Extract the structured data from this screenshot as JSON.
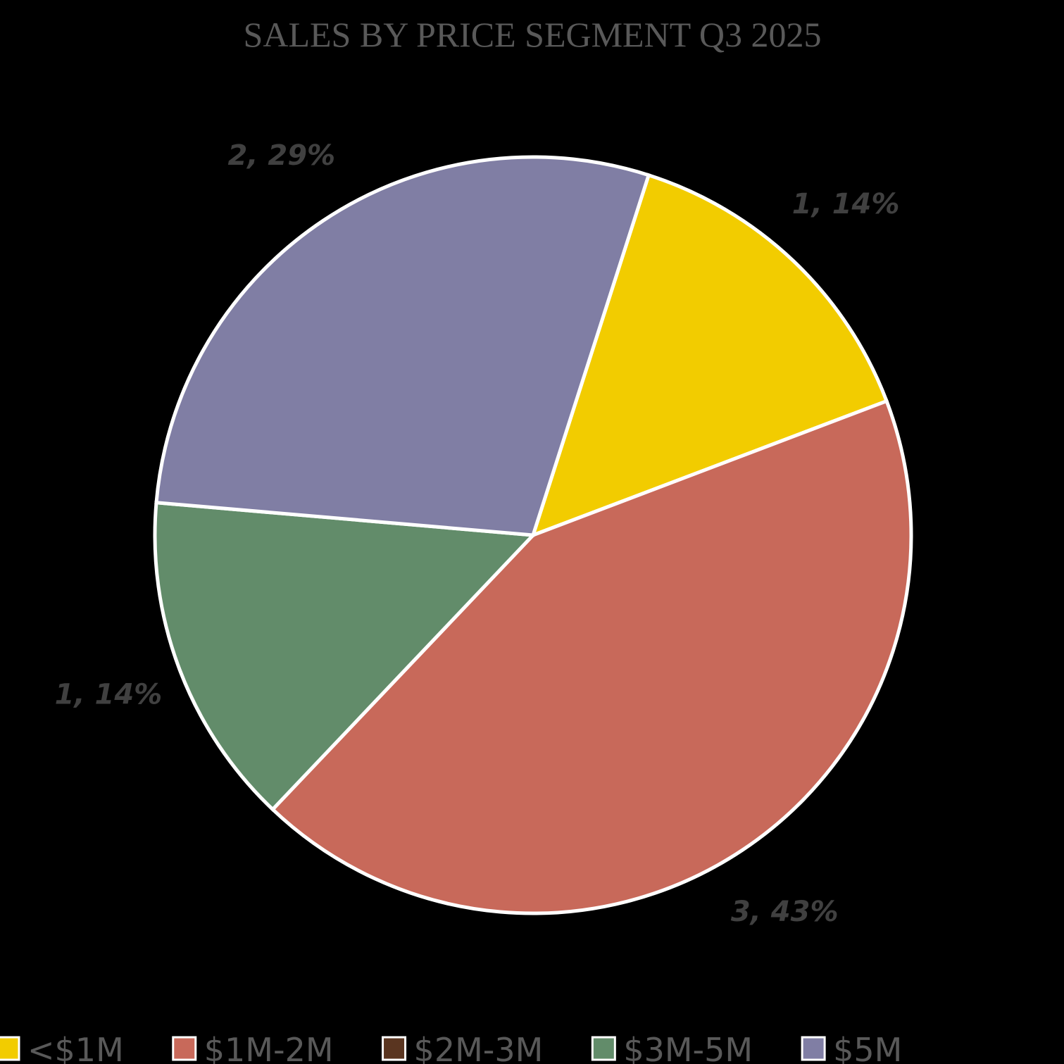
{
  "chart_data": {
    "type": "pie",
    "title": "SALES BY PRICE SEGMENT Q3 2025",
    "categories": [
      "<$1M",
      "$1M-2M",
      "$2M-3M",
      "$3M-5M",
      "$5M"
    ],
    "values": [
      1,
      3,
      0,
      1,
      2
    ],
    "value_labels": [
      "1, 14%",
      "3, 43%",
      null,
      "1, 14%",
      "2, 29%"
    ],
    "colors": [
      "#f2cc00",
      "#c8695a",
      "#5a3520",
      "#628c6a",
      "#807ea4"
    ],
    "legend": "bottom"
  }
}
